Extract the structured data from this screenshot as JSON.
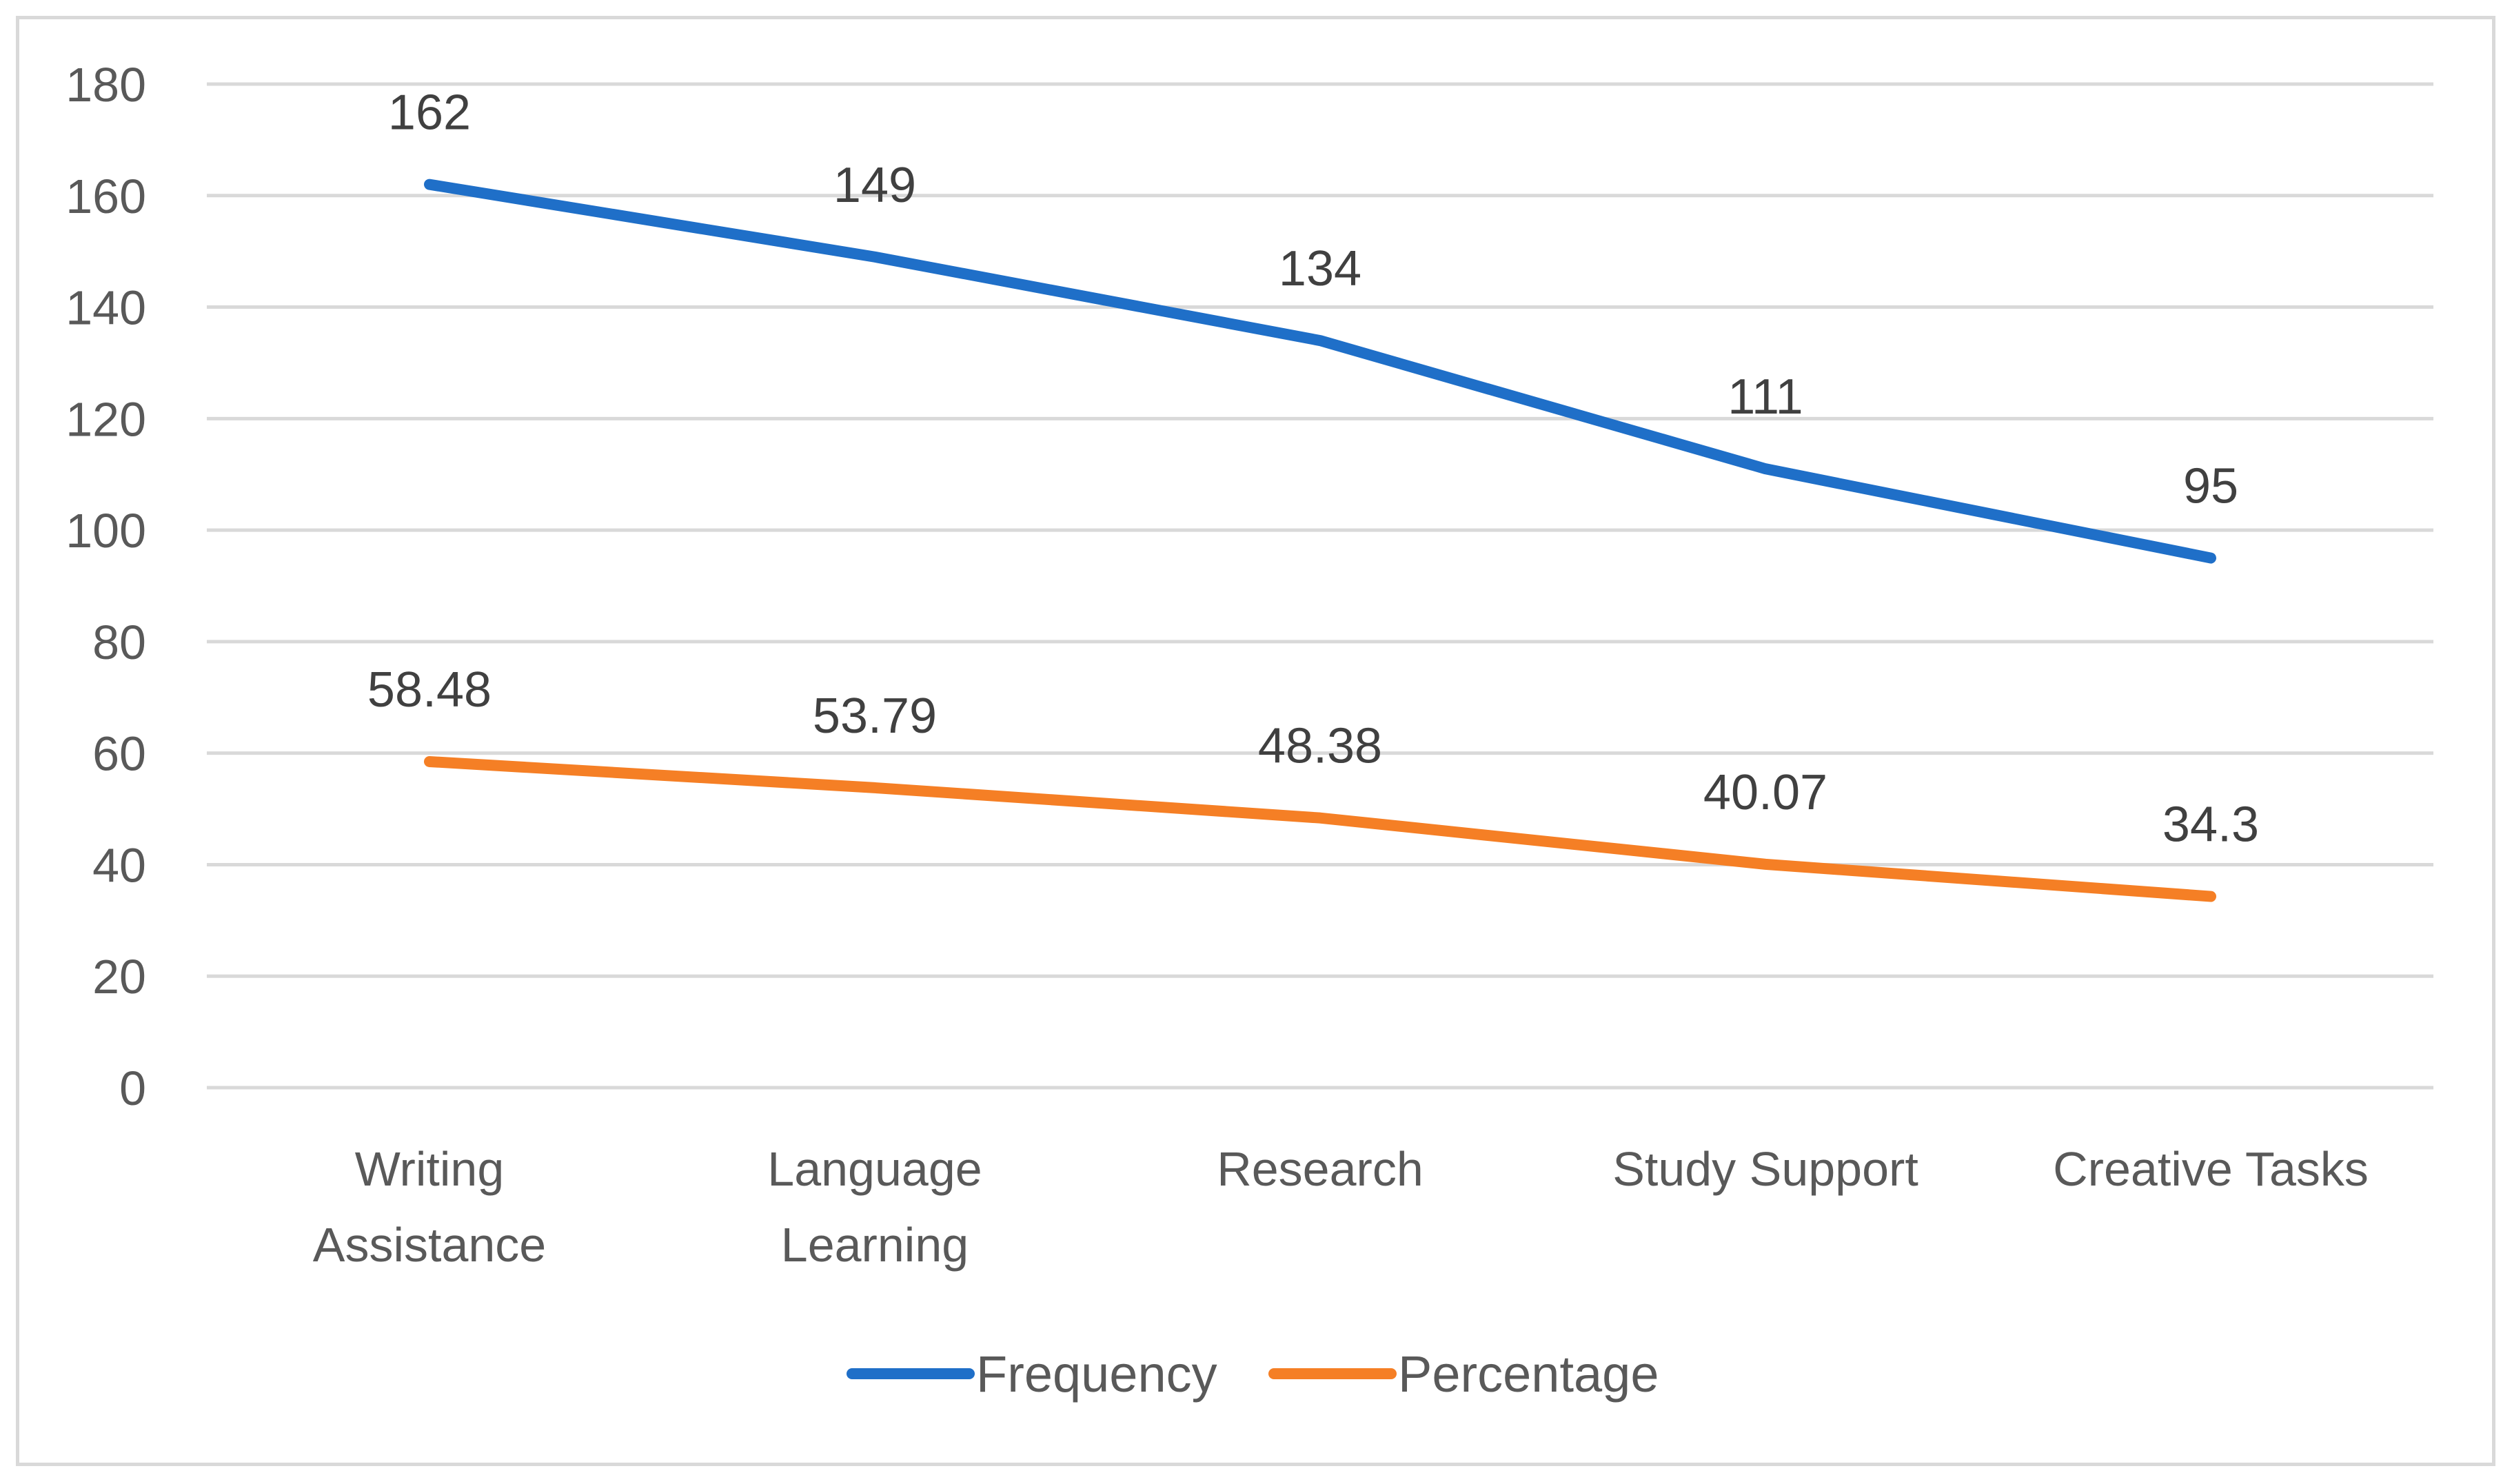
{
  "chart_data": {
    "type": "line",
    "title": "",
    "xlabel": "",
    "ylabel": "",
    "ylim": [
      0,
      180
    ],
    "yticks": [
      0,
      20,
      40,
      60,
      80,
      100,
      120,
      140,
      160,
      180
    ],
    "grid": true,
    "legend_position": "bottom",
    "categories": [
      [
        "Writing",
        "Assistance"
      ],
      [
        "Language",
        "Learning"
      ],
      [
        "Research"
      ],
      [
        "Study Support"
      ],
      [
        "Creative Tasks"
      ]
    ],
    "series": [
      {
        "name": "Frequency",
        "color": "#1f6fc8",
        "values": [
          162,
          149,
          134,
          111,
          95
        ],
        "labels": [
          "162",
          "149",
          "134",
          "111",
          "95"
        ]
      },
      {
        "name": "Percentage",
        "color": "#f57f25",
        "values": [
          58.48,
          53.79,
          48.38,
          40.07,
          34.3
        ],
        "labels": [
          "58.48",
          "53.79",
          "48.38",
          "40.07",
          "34.3"
        ]
      }
    ]
  }
}
